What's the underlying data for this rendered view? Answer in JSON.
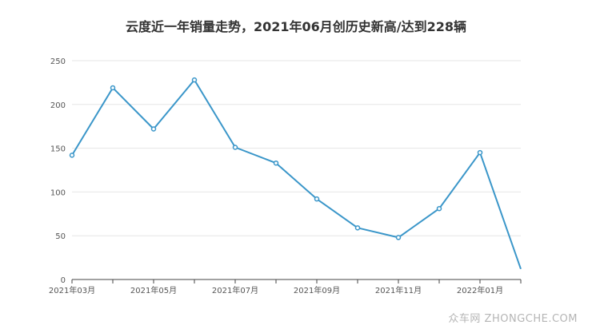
{
  "chart_data": {
    "type": "line",
    "title": "云度近一年销量走势，2021年06月创历史新高/达到228辆",
    "xlabel": "",
    "ylabel": "",
    "ylim": [
      0,
      250
    ],
    "yticks": [
      0,
      50,
      100,
      150,
      200,
      250
    ],
    "x": [
      "2021年03月",
      "2021年04月",
      "2021年05月",
      "2021年06月",
      "2021年07月",
      "2021年08月",
      "2021年09月",
      "2021年10月",
      "2021年11月",
      "2021年12月",
      "2022年01月",
      "2022年02月"
    ],
    "xtick_labels": [
      "2021年03月",
      "2021年05月",
      "2021年07月",
      "2021年09月",
      "2021年11月",
      "2022年01月"
    ],
    "series": [
      {
        "values": [
          142,
          219,
          172,
          228,
          151,
          133,
          92,
          59,
          48,
          81,
          145,
          12
        ]
      }
    ],
    "grid": true,
    "legend": "none",
    "colors": {
      "line": "#3a96c9",
      "grid": "#e6e6e6",
      "axis": "#444444"
    }
  },
  "watermark": "众车网 ZHONGCHE.COM"
}
